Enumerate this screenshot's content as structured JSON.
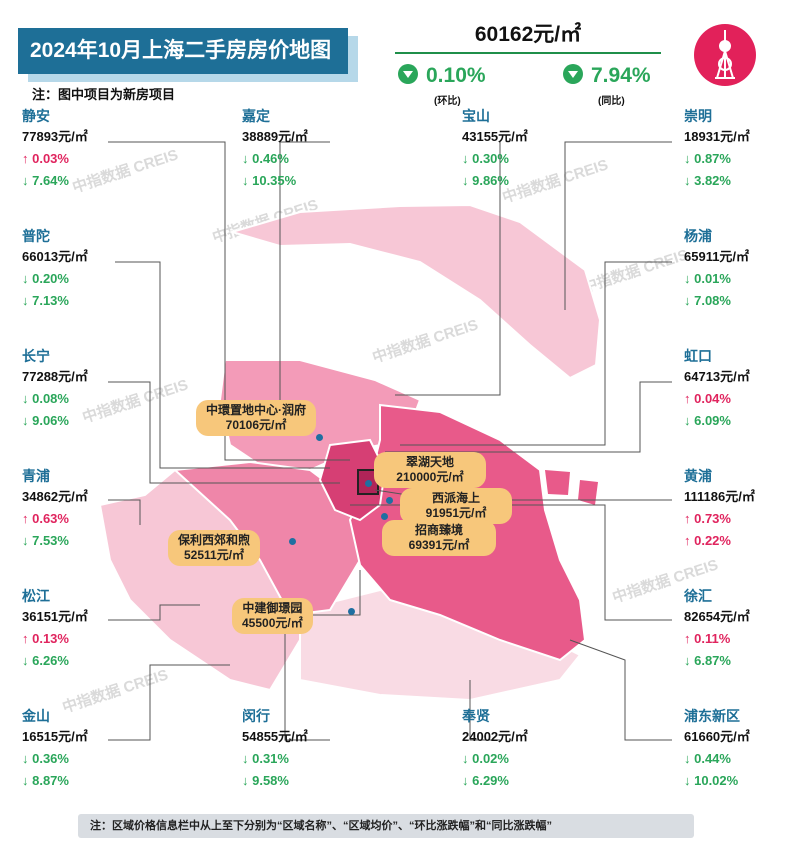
{
  "header": {
    "title": "2024年10月上海二手房房价地图",
    "note": "注：图中项目为新房项目",
    "avg_price": "60162元/㎡",
    "mom_value": "0.10%",
    "mom_label": "(环比)",
    "yoy_value": "7.94%",
    "yoy_label": "(同比)"
  },
  "colors": {
    "title_bg": "#1e6f97",
    "up": "#e0245e",
    "down": "#2aa65a",
    "project_bg": "#f7c77b",
    "map_dark": "#e85a8a",
    "map_mid": "#f39bb8",
    "map_light": "#f7c7d6"
  },
  "watermark": "中指数据 CREIS",
  "districts": [
    {
      "name": "静安",
      "price": "77893元/㎡",
      "mom": "↑ 0.03%",
      "yoy": "↓ 7.64%"
    },
    {
      "name": "嘉定",
      "price": "38889元/㎡",
      "mom": "↓ 0.46%",
      "yoy": "↓ 10.35%"
    },
    {
      "name": "宝山",
      "price": "43155元/㎡",
      "mom": "↓ 0.30%",
      "yoy": "↓ 9.86%"
    },
    {
      "name": "崇明",
      "price": "18931元/㎡",
      "mom": "↓ 0.87%",
      "yoy": "↓ 3.82%"
    },
    {
      "name": "普陀",
      "price": "66013元/㎡",
      "mom": "↓ 0.20%",
      "yoy": "↓ 7.13%"
    },
    {
      "name": "杨浦",
      "price": "65911元/㎡",
      "mom": "↓ 0.01%",
      "yoy": "↓ 7.08%"
    },
    {
      "name": "长宁",
      "price": "77288元/㎡",
      "mom": "↓ 0.08%",
      "yoy": "↓ 9.06%"
    },
    {
      "name": "虹口",
      "price": "64713元/㎡",
      "mom": "↑ 0.04%",
      "yoy": "↓ 6.09%"
    },
    {
      "name": "青浦",
      "price": "34862元/㎡",
      "mom": "↑ 0.63%",
      "yoy": "↓ 7.53%"
    },
    {
      "name": "黄浦",
      "price": "111186元/㎡",
      "mom": "↑ 0.73%",
      "yoy": "↑ 0.22%"
    },
    {
      "name": "松江",
      "price": "36151元/㎡",
      "mom": "↑ 0.13%",
      "yoy": "↓ 6.26%"
    },
    {
      "name": "徐汇",
      "price": "82654元/㎡",
      "mom": "↑ 0.11%",
      "yoy": "↓ 6.87%"
    },
    {
      "name": "金山",
      "price": "16515元/㎡",
      "mom": "↓ 0.36%",
      "yoy": "↓ 8.87%"
    },
    {
      "name": "闵行",
      "price": "54855元/㎡",
      "mom": "↓ 0.31%",
      "yoy": "↓ 9.58%"
    },
    {
      "name": "奉贤",
      "price": "24002元/㎡",
      "mom": "↓ 0.02%",
      "yoy": "↓ 6.29%"
    },
    {
      "name": "浦东新区",
      "price": "61660元/㎡",
      "mom": "↓ 0.44%",
      "yoy": "↓ 10.02%"
    }
  ],
  "projects": [
    {
      "name": "中環置地中心·润府",
      "price": "70106元/㎡"
    },
    {
      "name": "翠湖天地",
      "price": "210000元/㎡"
    },
    {
      "name": "西派海上",
      "price": "91951元/㎡"
    },
    {
      "name": "招商臻境",
      "price": "69391元/㎡"
    },
    {
      "name": "保利西郊和煦",
      "price": "52511元/㎡"
    },
    {
      "name": "中建御璟园",
      "price": "45500元/㎡"
    }
  ],
  "footer": "注：区域价格信息栏中从上至下分别为“区域名称”、“区域均价”、“环比涨跌幅”和“同比涨跌幅”",
  "chart_data": {
    "type": "table",
    "title": "2024年10月上海二手房房价地图",
    "overall": {
      "avg_price": 60162,
      "unit": "元/㎡",
      "mom_pct": -0.1,
      "yoy_pct": -7.94
    },
    "columns": [
      "区域名称",
      "区域均价",
      "环比涨跌幅",
      "同比涨跌幅"
    ],
    "rows": [
      [
        "静安",
        77893,
        0.03,
        -7.64
      ],
      [
        "嘉定",
        38889,
        -0.46,
        -10.35
      ],
      [
        "宝山",
        43155,
        -0.3,
        -9.86
      ],
      [
        "崇明",
        18931,
        -0.87,
        -3.82
      ],
      [
        "普陀",
        66013,
        -0.2,
        -7.13
      ],
      [
        "杨浦",
        65911,
        -0.01,
        -7.08
      ],
      [
        "长宁",
        77288,
        -0.08,
        -9.06
      ],
      [
        "虹口",
        64713,
        0.04,
        -6.09
      ],
      [
        "青浦",
        34862,
        0.63,
        -7.53
      ],
      [
        "黄浦",
        111186,
        0.73,
        0.22
      ],
      [
        "松江",
        36151,
        0.13,
        -6.26
      ],
      [
        "徐汇",
        82654,
        0.11,
        -6.87
      ],
      [
        "金山",
        16515,
        -0.36,
        -8.87
      ],
      [
        "闵行",
        54855,
        -0.31,
        -9.58
      ],
      [
        "奉贤",
        24002,
        -0.02,
        -6.29
      ],
      [
        "浦东新区",
        61660,
        -0.44,
        -10.02
      ]
    ],
    "projects": [
      {
        "name": "中環置地中心·润府",
        "price": 70106
      },
      {
        "name": "翠湖天地",
        "price": 210000
      },
      {
        "name": "西派海上",
        "price": 91951
      },
      {
        "name": "招商臻境",
        "price": 69391
      },
      {
        "name": "保利西郊和煦",
        "price": 52511
      },
      {
        "name": "中建御璟园",
        "price": 45500
      }
    ]
  }
}
